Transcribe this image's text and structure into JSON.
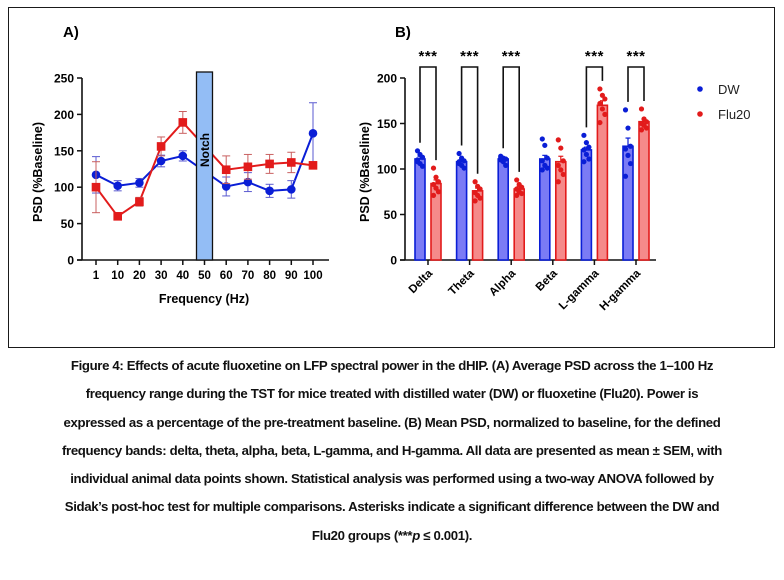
{
  "figure": {
    "caption_lines": [
      "Figure 4: Effects of acute fluoxetine on LFP spectral power in the dHIP. (A) Average PSD across the 1–100 Hz",
      "frequency range during the TST for mice treated with distilled water (DW) or fluoxetine (Flu20). Power is",
      "expressed as a percentage of the pre-treatment baseline. (B) Mean PSD, normalized to baseline, for the defined",
      "frequency bands: delta, theta, alpha, beta, L-gamma, and H-gamma. All data are presented as mean ± SEM, with",
      "individual animal data points shown. Statistical analysis was performed using a two-way ANOVA followed by",
      "Sidak’s post-hoc test for multiple comparisons. Asterisks indicate a significant difference between the DW and",
      "Flu20 groups (***p ≤ 0.001)."
    ]
  },
  "colors": {
    "dw": "#0a1ed6",
    "flu": "#e21b1b",
    "dw_fill": "#7b7bf5",
    "flu_fill": "#f58a8a",
    "notch": "#93bdf5"
  },
  "chart_data": [
    {
      "type": "line",
      "panel_label": "A)",
      "xlabel": "Frequency (Hz)",
      "ylabel": "PSD (%Baseline)",
      "ylim": [
        0,
        250
      ],
      "yticks": [
        0,
        50,
        100,
        150,
        200,
        250
      ],
      "x": [
        "1",
        "10",
        "20",
        "30",
        "40",
        "50",
        "60",
        "70",
        "80",
        "90",
        "100"
      ],
      "notch": {
        "label": "Notch",
        "x": "50"
      },
      "series": [
        {
          "name": "DW",
          "marker": "circle",
          "values": [
            117,
            102,
            106,
            136,
            143,
            null,
            101,
            107,
            95,
            97,
            174
          ],
          "sem": [
            25,
            7,
            6,
            8,
            7,
            null,
            13,
            13,
            9,
            12,
            42
          ]
        },
        {
          "name": "Flu20",
          "marker": "square",
          "values": [
            100,
            60,
            80,
            156,
            189,
            null,
            124,
            128,
            132,
            134,
            130
          ],
          "sem": [
            35,
            4,
            6,
            13,
            15,
            null,
            19,
            17,
            13,
            14,
            5
          ]
        }
      ],
      "connect_across_notch": true
    },
    {
      "type": "bar",
      "panel_label": "B)",
      "xlabel": "",
      "ylabel": "PSD (%Baseline)",
      "ylim": [
        0,
        200
      ],
      "yticks": [
        0,
        50,
        100,
        150,
        200
      ],
      "categories": [
        "Delta",
        "Theta",
        "Alpha",
        "Beta",
        "L-gamma",
        "H-gamma"
      ],
      "legend": {
        "position": "right",
        "entries": [
          "DW",
          "Flu20"
        ]
      },
      "series": [
        {
          "name": "DW",
          "values": [
            111,
            108,
            111,
            111,
            121,
            125
          ],
          "sem": [
            3,
            2,
            1,
            4,
            3,
            9
          ],
          "points": [
            [
              120,
              116,
              113,
              110,
              106,
              103,
              108
            ],
            [
              117,
              112,
              109,
              106,
              104,
              101,
              108
            ],
            [
              114,
              112,
              111,
              110,
              108,
              104,
              112
            ],
            [
              133,
              126,
              112,
              109,
              104,
              101,
              99
            ],
            [
              137,
              129,
              124,
              121,
              116,
              111,
              108
            ],
            [
              165,
              145,
              125,
              122,
              115,
              106,
              92
            ]
          ]
        },
        {
          "name": "Flu20",
          "values": [
            84,
            76,
            78,
            108,
            170,
            152
          ],
          "sem": [
            4,
            3,
            3,
            6,
            5,
            3
          ],
          "points": [
            [
              101,
              91,
              86,
              83,
              79,
              75,
              71
            ],
            [
              86,
              81,
              78,
              74,
              71,
              68,
              65
            ],
            [
              88,
              83,
              80,
              78,
              75,
              73,
              71
            ],
            [
              132,
              123,
              109,
              104,
              99,
              94,
              86
            ],
            [
              188,
              181,
              177,
              172,
              166,
              160,
              151
            ],
            [
              166,
              155,
              152,
              150,
              148,
              145,
              143
            ]
          ]
        }
      ],
      "significance": [
        {
          "category": "Delta",
          "label": "***"
        },
        {
          "category": "Theta",
          "label": "***"
        },
        {
          "category": "Alpha",
          "label": "***"
        },
        {
          "category": "L-gamma",
          "label": "***"
        },
        {
          "category": "H-gamma",
          "label": "***"
        }
      ]
    }
  ]
}
